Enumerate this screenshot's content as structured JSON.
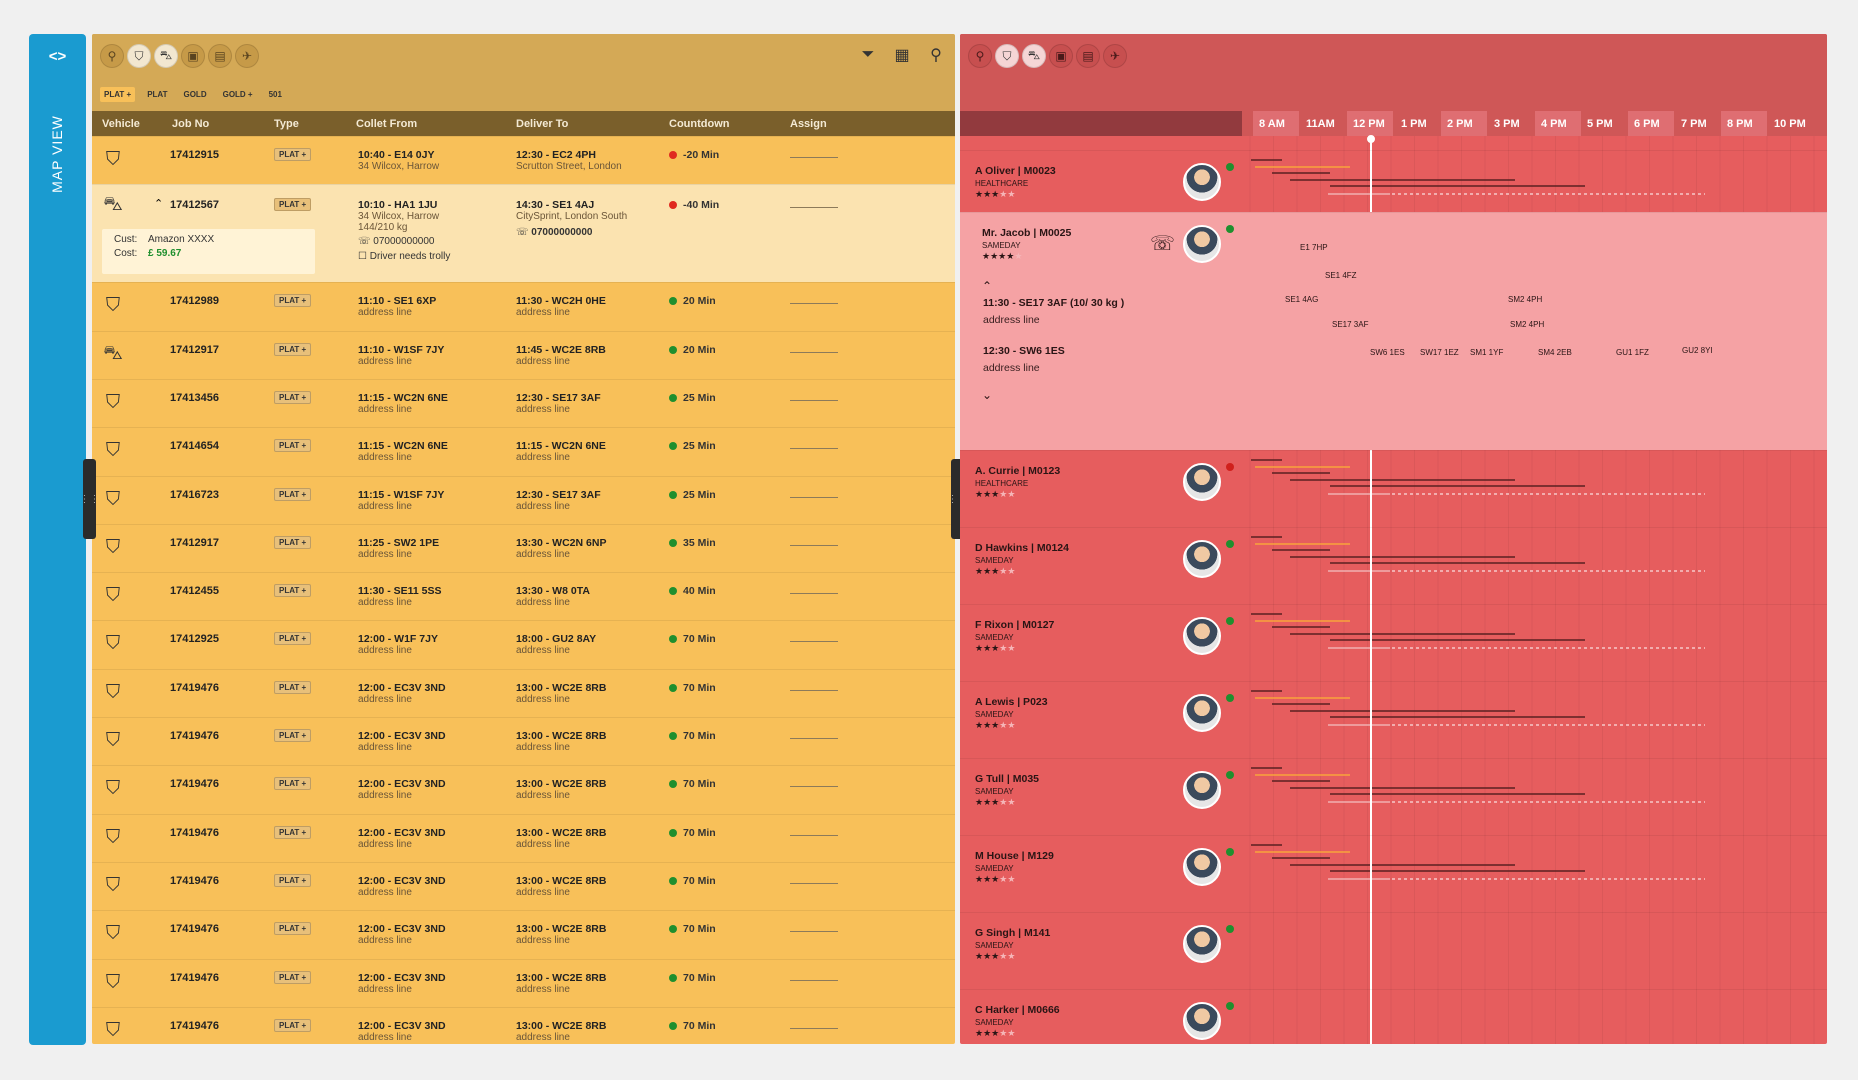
{
  "sidebar": {
    "toggle_label": "<>",
    "title": "MAP VIEW"
  },
  "icons": {
    "vehicle_tabs": [
      "bicycle-icon",
      "motorbike-icon",
      "car-icon",
      "van-icon",
      "truck-icon",
      "plane-icon"
    ],
    "tools": [
      "filter-icon",
      "calendar-icon",
      "search-icon"
    ]
  },
  "jobs": {
    "filters": [
      "PLAT +",
      "PLAT",
      "GOLD",
      "GOLD +",
      "501"
    ],
    "columns": {
      "vehicle": "Vehicle",
      "job_no": "Job No",
      "type": "Type",
      "collect": "Collet From",
      "deliver": "Deliver To",
      "countdown": "Countdown",
      "assign": "Assign"
    },
    "expanded": {
      "phone_collect": "07000000000",
      "phone_deliver": "07000000000",
      "note": "Driver needs trolly",
      "cust_label": "Cust:",
      "cust_value": "Amazon XXXX",
      "cost_label": "Cost:",
      "cost_value": "£ 59.67"
    },
    "rows": [
      {
        "vehicle": "motorbike",
        "job": "17412915",
        "type": "PLAT +",
        "c1": "10:40 - E14 0JY",
        "c2": "34 Wilcox, Harrow",
        "d1": "12:30 - EC2 4PH",
        "d2": "Scrutton Street, London",
        "cd": "-20 Min",
        "status": "red"
      },
      {
        "vehicle": "car",
        "job": "17412567",
        "type": "PLAT +",
        "c1": "10:10 - HA1 1JU",
        "c2": "34 Wilcox, Harrow",
        "c3": "144/210 kg",
        "d1": "14:30 - SE1 4AJ",
        "d2": "CitySprint, London South",
        "cd": "-40 Min",
        "status": "red"
      },
      {
        "vehicle": "motorbike",
        "job": "17412989",
        "type": "PLAT +",
        "c1": "11:10 - SE1 6XP",
        "c2": "address line",
        "d1": "11:30 - WC2H 0HE",
        "d2": "address line",
        "cd": "20 Min",
        "status": "green"
      },
      {
        "vehicle": "car",
        "job": "17412917",
        "type": "PLAT +",
        "c1": "11:10 - W1SF 7JY",
        "c2": "address line",
        "d1": "11:45 - WC2E 8RB",
        "d2": "address line",
        "cd": "20 Min",
        "status": "green"
      },
      {
        "vehicle": "motorbike",
        "job": "17413456",
        "type": "PLAT +",
        "c1": "11:15 - WC2N 6NE",
        "c2": "address line",
        "d1": "12:30 - SE17 3AF",
        "d2": "address line",
        "cd": "25 Min",
        "status": "green"
      },
      {
        "vehicle": "motorbike",
        "job": "17414654",
        "type": "PLAT +",
        "c1": "11:15 - WC2N 6NE",
        "c2": "address line",
        "d1": "11:15 - WC2N 6NE",
        "d2": "address line",
        "cd": "25 Min",
        "status": "green"
      },
      {
        "vehicle": "motorbike",
        "job": "17416723",
        "type": "PLAT +",
        "c1": "11:15 - W1SF 7JY",
        "c2": "address line",
        "d1": "12:30 - SE17 3AF",
        "d2": "address line",
        "cd": "25 Min",
        "status": "green"
      },
      {
        "vehicle": "motorbike",
        "job": "17412917",
        "type": "PLAT +",
        "c1": "11:25 - SW2 1PE",
        "c2": "address line",
        "d1": "13:30 - WC2N 6NP",
        "d2": "address line",
        "cd": "35 Min",
        "status": "green"
      },
      {
        "vehicle": "motorbike",
        "job": "17412455",
        "type": "PLAT +",
        "c1": "11:30 - SE11 5SS",
        "c2": "address line",
        "d1": "13:30 - W8 0TA",
        "d2": "address line",
        "cd": "40 Min",
        "status": "green"
      },
      {
        "vehicle": "motorbike",
        "job": "17412925",
        "type": "PLAT +",
        "c1": "12:00 - W1F 7JY",
        "c2": "address line",
        "d1": "18:00 - GU2 8AY",
        "d2": "address line",
        "cd": "70 Min",
        "status": "green"
      },
      {
        "vehicle": "motorbike",
        "job": "17419476",
        "type": "PLAT +",
        "c1": "12:00 - EC3V 3ND",
        "c2": "address line",
        "d1": "13:00 - WC2E 8RB",
        "d2": "address line",
        "cd": "70 Min",
        "status": "green"
      },
      {
        "vehicle": "motorbike",
        "job": "17419476",
        "type": "PLAT +",
        "c1": "12:00 - EC3V 3ND",
        "c2": "address line",
        "d1": "13:00 - WC2E 8RB",
        "d2": "address line",
        "cd": "70 Min",
        "status": "green"
      },
      {
        "vehicle": "motorbike",
        "job": "17419476",
        "type": "PLAT +",
        "c1": "12:00 - EC3V 3ND",
        "c2": "address line",
        "d1": "13:00 - WC2E 8RB",
        "d2": "address line",
        "cd": "70 Min",
        "status": "green"
      },
      {
        "vehicle": "motorbike",
        "job": "17419476",
        "type": "PLAT +",
        "c1": "12:00 - EC3V 3ND",
        "c2": "address line",
        "d1": "13:00 - WC2E 8RB",
        "d2": "address line",
        "cd": "70 Min",
        "status": "green"
      },
      {
        "vehicle": "motorbike",
        "job": "17419476",
        "type": "PLAT +",
        "c1": "12:00 - EC3V 3ND",
        "c2": "address line",
        "d1": "13:00 - WC2E 8RB",
        "d2": "address line",
        "cd": "70 Min",
        "status": "green"
      },
      {
        "vehicle": "motorbike",
        "job": "17419476",
        "type": "PLAT +",
        "c1": "12:00 - EC3V 3ND",
        "c2": "address line",
        "d1": "13:00 - WC2E 8RB",
        "d2": "address line",
        "cd": "70 Min",
        "status": "green"
      },
      {
        "vehicle": "motorbike",
        "job": "17419476",
        "type": "PLAT +",
        "c1": "12:00 - EC3V 3ND",
        "c2": "address line",
        "d1": "13:00 - WC2E 8RB",
        "d2": "address line",
        "cd": "70 Min",
        "status": "green"
      },
      {
        "vehicle": "motorbike",
        "job": "17419476",
        "type": "PLAT +",
        "c1": "12:00 - EC3V 3ND",
        "c2": "address line",
        "d1": "13:00 - WC2E 8RB",
        "d2": "address line",
        "cd": "70 Min",
        "status": "green"
      }
    ]
  },
  "schedule": {
    "hours": [
      "8 AM",
      "11AM",
      "12 PM",
      "1 PM",
      "2 PM",
      "3 PM",
      "4 PM",
      "5 PM",
      "6 PM",
      "7 PM",
      "8 PM",
      "10 PM"
    ],
    "drivers": [
      {
        "name": "A Oliver  | M0023",
        "type": "HEALTHCARE",
        "stars": 3,
        "status": "green"
      },
      {
        "name": "Mr. Jacob  | M0025",
        "type": "SAMEDAY",
        "stars": 4,
        "status": "green"
      },
      {
        "name": "A. Currie | M0123",
        "type": "HEALTHCARE",
        "stars": 3,
        "status": "red"
      },
      {
        "name": "D Hawkins | M0124",
        "type": "SAMEDAY",
        "stars": 3,
        "status": "green"
      },
      {
        "name": "F Rixon | M0127",
        "type": "SAMEDAY",
        "stars": 3,
        "status": "green"
      },
      {
        "name": "A Lewis  | P023",
        "type": "SAMEDAY",
        "stars": 3,
        "status": "green"
      },
      {
        "name": "G Tull  | M035",
        "type": "SAMEDAY",
        "stars": 3,
        "status": "green"
      },
      {
        "name": "M House  | M129",
        "type": "SAMEDAY",
        "stars": 3,
        "status": "green"
      },
      {
        "name": "G Singh | M141",
        "type": "SAMEDAY",
        "stars": 3,
        "status": "green"
      },
      {
        "name": "C Harker | M0666",
        "type": "SAMEDAY",
        "stars": 3,
        "status": "green"
      }
    ],
    "expanded": {
      "stop1": "11:30 - SE17 3AF (10/ 30 kg )",
      "stop1_sub": "address line",
      "stop2": "12:30 - SW6 1ES",
      "stop2_sub": "address line",
      "labels": [
        "E1 7HP",
        "SE1 4FZ",
        "SE1 4AG",
        "SM2 4PH",
        "SE17 3AF",
        "SM2 4PH",
        "SW6 1ES",
        "SW17 1EZ",
        "SM1 1YF",
        "SM4 2EB",
        "GU1 1FZ",
        "GU2 8YI"
      ]
    },
    "colors": {
      "accent": "#e65d5e",
      "now_line": "#ffffff",
      "bar_dark": "#5a2020",
      "bar_orange": "#f8a33c"
    }
  }
}
